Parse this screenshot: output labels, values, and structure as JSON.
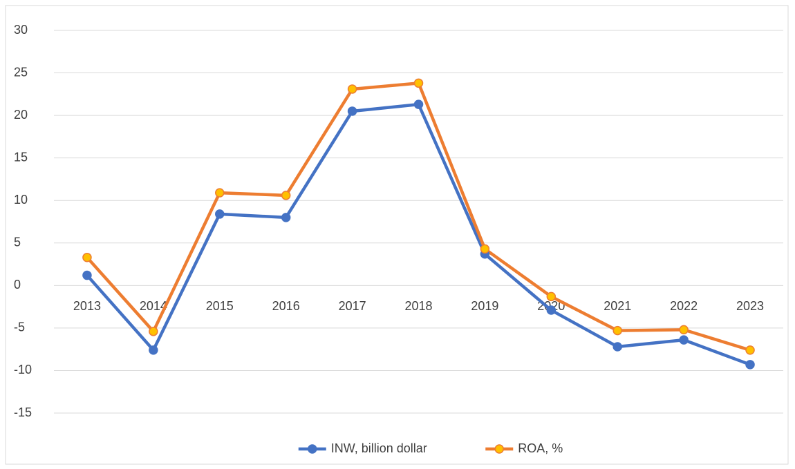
{
  "chart_data": {
    "type": "line",
    "categories": [
      "2013",
      "2014",
      "2015",
      "2016",
      "2017",
      "2018",
      "2019",
      "2020",
      "2021",
      "2022",
      "2023"
    ],
    "series": [
      {
        "name": "INW, billion dollar",
        "color": "#4472c4",
        "marker_fill": "#4472c4",
        "values": [
          1.2,
          -7.6,
          8.4,
          8.0,
          20.5,
          21.3,
          3.7,
          -2.9,
          -7.2,
          -6.4,
          -9.3
        ]
      },
      {
        "name": "ROA, %",
        "color": "#ed7d31",
        "marker_fill": "#ffc000",
        "values": [
          3.3,
          -5.4,
          10.9,
          10.6,
          23.1,
          23.8,
          4.3,
          -1.3,
          -5.3,
          -5.2,
          -7.6
        ]
      }
    ],
    "ylim": [
      -15,
      30
    ],
    "yticks": [
      -15,
      -10,
      -5,
      0,
      5,
      10,
      15,
      20,
      25,
      30
    ],
    "grid": true,
    "legend": "bottom"
  }
}
